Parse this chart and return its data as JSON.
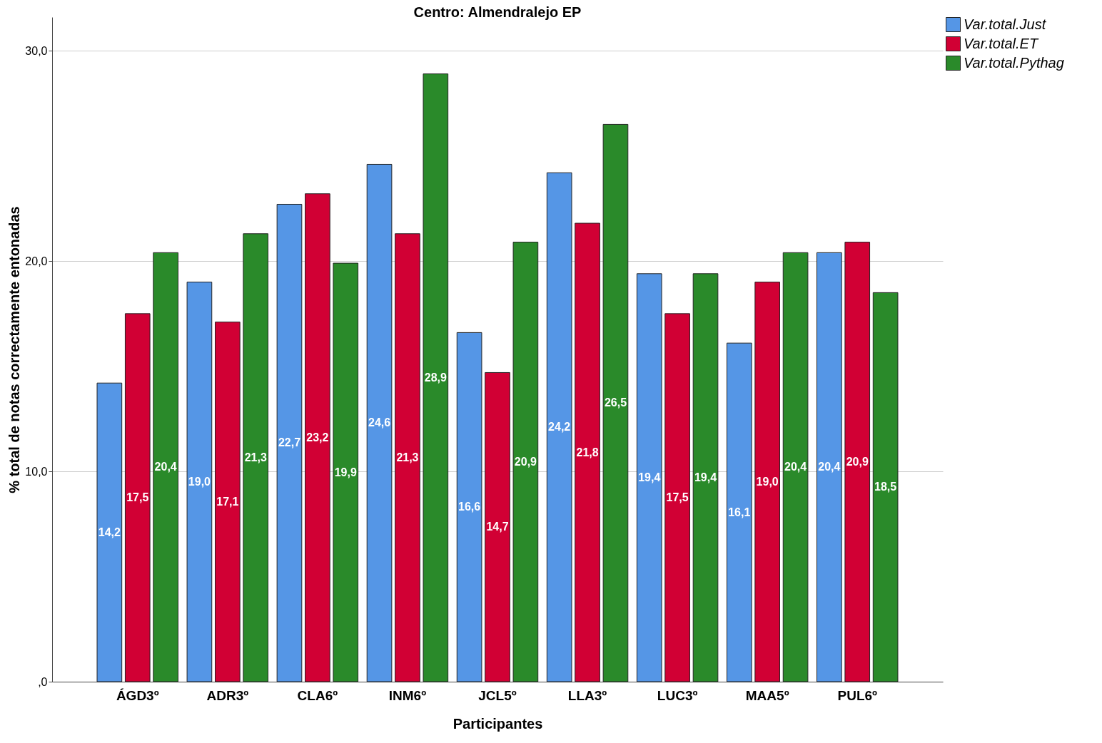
{
  "chart_data": {
    "type": "bar",
    "title": "Centro: Almendralejo EP",
    "xlabel": "Participantes",
    "ylabel": "% total de notas correctamente entonadas",
    "categories": [
      "ÁGD3º",
      "ADR3º",
      "CLA6º",
      "INM6º",
      "JCL5º",
      "LLA3º",
      "LUC3º",
      "MAA5º",
      "PUL6º"
    ],
    "series": [
      {
        "name": "Var.total.Just",
        "color": "#5596e6",
        "values": [
          14.2,
          19.0,
          22.7,
          24.6,
          16.6,
          24.2,
          19.4,
          16.1,
          20.4
        ],
        "value_labels": [
          "14,2",
          "19,0",
          "22,7",
          "24,6",
          "16,6",
          "24,2",
          "19,4",
          "16,1",
          "20,4"
        ]
      },
      {
        "name": "Var.total.ET",
        "color": "#d10034",
        "values": [
          17.5,
          17.1,
          23.2,
          21.3,
          14.7,
          21.8,
          17.5,
          19.0,
          20.9
        ],
        "value_labels": [
          "17,5",
          "17,1",
          "23,2",
          "21,3",
          "14,7",
          "21,8",
          "17,5",
          "19,0",
          "20,9"
        ]
      },
      {
        "name": "Var.total.Pythag",
        "color": "#2a8a2a",
        "values": [
          20.4,
          21.3,
          19.9,
          28.9,
          20.9,
          26.5,
          19.4,
          20.4,
          18.5
        ],
        "value_labels": [
          "20,4",
          "21,3",
          "19,9",
          "28,9",
          "20,9",
          "26,5",
          "19,4",
          "20,4",
          "18,5"
        ]
      }
    ],
    "ylim": [
      0,
      31.6
    ],
    "yticks": [
      {
        "value": 0,
        "label": ",0"
      },
      {
        "value": 10,
        "label": "10,0"
      },
      {
        "value": 20,
        "label": "20,0"
      },
      {
        "value": 30,
        "label": "30,0"
      }
    ],
    "grid": "y",
    "legend": "top right"
  }
}
